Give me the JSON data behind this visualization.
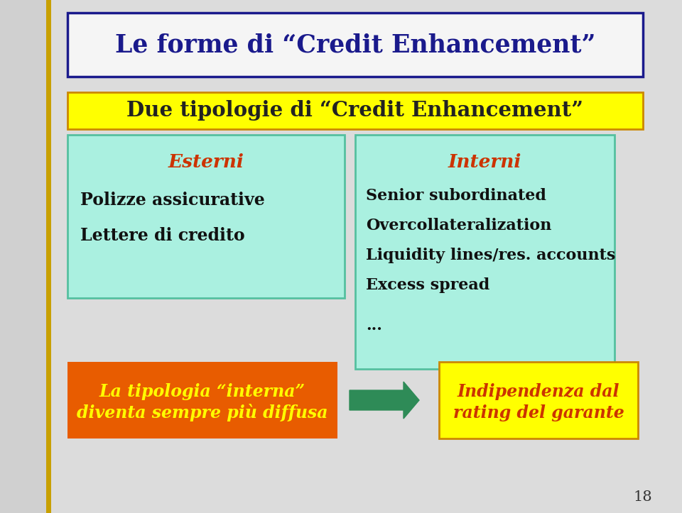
{
  "bg_color": "#dcdcdc",
  "title_text": "Le forme di “Credit Enhancement”",
  "title_color": "#1a1a8c",
  "title_box_edge": "#1a1a8c",
  "title_box_bg": "#f5f5f5",
  "yellow_bar_text": "Due tipologie di “Credit Enhancement”",
  "yellow_bar_bg": "#ffff00",
  "yellow_bar_edge": "#cc8800",
  "yellow_bar_text_color": "#222222",
  "left_box_bg": "#aaf0e0",
  "left_box_edge": "#55c0a0",
  "left_header": "Esterni",
  "left_header_color": "#cc3300",
  "left_body_line1": "Polizze assicurative",
  "left_body_line2": "Lettere di credito",
  "left_body_color": "#111111",
  "right_box_bg": "#aaf0e0",
  "right_box_edge": "#55c0a0",
  "right_header": "Interni",
  "right_header_color": "#cc3300",
  "right_body_line1": "Senior subordinated",
  "right_body_line2": "Overcollateralization",
  "right_body_line3": "Liquidity lines/res. accounts",
  "right_body_line4": "Excess spread",
  "right_body_line5": "...",
  "right_body_color": "#111111",
  "bottom_left_bg": "#e85c00",
  "bottom_left_line1": "La tipologia “interna”",
  "bottom_left_line2": "diventa sempre più diffusa",
  "bottom_left_text_color": "#ffff00",
  "arrow_color": "#2e8b57",
  "bottom_right_bg": "#ffff00",
  "bottom_right_edge": "#cc8800",
  "bottom_right_line1": "Indipendenza dal",
  "bottom_right_line2": "rating del garante",
  "bottom_right_text_color": "#cc3300",
  "page_number": "18",
  "left_stripe_color": "#c8a000"
}
